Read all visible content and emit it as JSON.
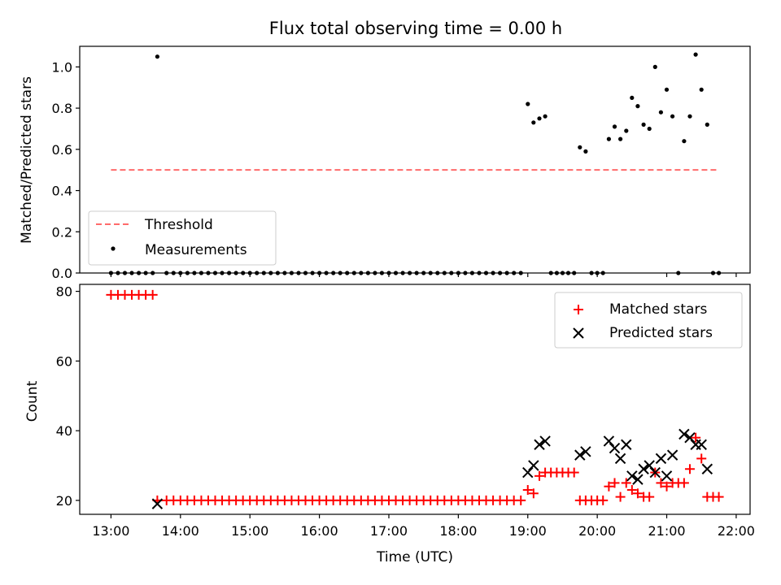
{
  "chart_data": [
    {
      "type": "scatter",
      "title": "Flux total observing time = 0.00 h",
      "xlabel": "",
      "ylabel": "Matched/Predicted stars",
      "xlim_hours": [
        12.55,
        22.2
      ],
      "ylim": [
        0,
        1.1
      ],
      "yticks": [
        "0.0",
        "0.2",
        "0.4",
        "0.6",
        "0.8",
        "1.0"
      ],
      "grid": false,
      "legend_placement": "lower-left",
      "colors": {
        "threshold": "#ff6b6b",
        "measurements": "#000000"
      },
      "threshold": {
        "name": "Threshold",
        "value": 0.5,
        "x_range": [
          13.0,
          21.75
        ],
        "style": "dashed"
      },
      "measurements": {
        "name": "Measurements",
        "x": [
          13.0,
          13.1,
          13.2,
          13.3,
          13.4,
          13.5,
          13.6,
          13.667,
          13.8,
          13.9,
          14.0,
          14.1,
          14.2,
          14.3,
          14.4,
          14.5,
          14.6,
          14.7,
          14.8,
          14.9,
          15.0,
          15.1,
          15.2,
          15.3,
          15.4,
          15.5,
          15.6,
          15.7,
          15.8,
          15.9,
          16.0,
          16.1,
          16.2,
          16.3,
          16.4,
          16.5,
          16.6,
          16.7,
          16.8,
          16.9,
          17.0,
          17.1,
          17.2,
          17.3,
          17.4,
          17.5,
          17.6,
          17.7,
          17.8,
          17.9,
          18.0,
          18.1,
          18.2,
          18.3,
          18.4,
          18.5,
          18.6,
          18.7,
          18.8,
          18.9,
          19.0,
          19.083,
          19.167,
          19.25,
          19.333,
          19.417,
          19.5,
          19.583,
          19.667,
          19.75,
          19.833,
          19.917,
          20.0,
          20.083,
          20.167,
          20.25,
          20.333,
          20.417,
          20.5,
          20.583,
          20.667,
          20.75,
          20.833,
          20.917,
          21.0,
          21.083,
          21.167,
          21.25,
          21.333,
          21.417,
          21.5,
          21.583,
          21.667,
          21.75
        ],
        "y": [
          0,
          0,
          0,
          0,
          0,
          0,
          0,
          1.05,
          0,
          0,
          0,
          0,
          0,
          0,
          0,
          0,
          0,
          0,
          0,
          0,
          0,
          0,
          0,
          0,
          0,
          0,
          0,
          0,
          0,
          0,
          0,
          0,
          0,
          0,
          0,
          0,
          0,
          0,
          0,
          0,
          0,
          0,
          0,
          0,
          0,
          0,
          0,
          0,
          0,
          0,
          0,
          0,
          0,
          0,
          0,
          0,
          0,
          0,
          0,
          0,
          0.82,
          0.73,
          0.75,
          0.76,
          0,
          0,
          0,
          0,
          0,
          0.61,
          0.59,
          0,
          0,
          0,
          0.65,
          0.71,
          0.65,
          0.69,
          0.85,
          0.81,
          0.72,
          0.7,
          1.0,
          0.78,
          0.89,
          0.76,
          0,
          0.64,
          0.76,
          1.06,
          0.89,
          0.72,
          0,
          0
        ]
      }
    },
    {
      "type": "scatter",
      "title": "",
      "xlabel": "Time (UTC)",
      "ylabel": "Count",
      "xlim_hours": [
        12.55,
        22.2
      ],
      "ylim": [
        16,
        82
      ],
      "yticks": [
        "20",
        "40",
        "60",
        "80"
      ],
      "xticks": [
        "13:00",
        "14:00",
        "15:00",
        "16:00",
        "17:00",
        "18:00",
        "19:00",
        "20:00",
        "21:00",
        "22:00"
      ],
      "xtick_hours": [
        13,
        14,
        15,
        16,
        17,
        18,
        19,
        20,
        21,
        22
      ],
      "grid": false,
      "legend_placement": "top-right",
      "colors": {
        "matched": "#ff0000",
        "predicted": "#000000"
      },
      "series": [
        {
          "name": "Matched stars",
          "marker": "+",
          "x": [
            13.0,
            13.1,
            13.2,
            13.3,
            13.4,
            13.5,
            13.6,
            13.667,
            13.8,
            13.9,
            14.0,
            14.1,
            14.2,
            14.3,
            14.4,
            14.5,
            14.6,
            14.7,
            14.8,
            14.9,
            15.0,
            15.1,
            15.2,
            15.3,
            15.4,
            15.5,
            15.6,
            15.7,
            15.8,
            15.9,
            16.0,
            16.1,
            16.2,
            16.3,
            16.4,
            16.5,
            16.6,
            16.7,
            16.8,
            16.9,
            17.0,
            17.1,
            17.2,
            17.3,
            17.4,
            17.5,
            17.6,
            17.7,
            17.8,
            17.9,
            18.0,
            18.1,
            18.2,
            18.3,
            18.4,
            18.5,
            18.6,
            18.7,
            18.8,
            18.9,
            19.0,
            19.083,
            19.167,
            19.25,
            19.333,
            19.417,
            19.5,
            19.583,
            19.667,
            19.75,
            19.833,
            19.917,
            20.0,
            20.083,
            20.167,
            20.25,
            20.333,
            20.417,
            20.5,
            20.583,
            20.667,
            20.75,
            20.833,
            20.917,
            21.0,
            21.083,
            21.167,
            21.25,
            21.333,
            21.417,
            21.5,
            21.583,
            21.667,
            21.75
          ],
          "y": [
            79,
            79,
            79,
            79,
            79,
            79,
            79,
            20,
            20,
            20,
            20,
            20,
            20,
            20,
            20,
            20,
            20,
            20,
            20,
            20,
            20,
            20,
            20,
            20,
            20,
            20,
            20,
            20,
            20,
            20,
            20,
            20,
            20,
            20,
            20,
            20,
            20,
            20,
            20,
            20,
            20,
            20,
            20,
            20,
            20,
            20,
            20,
            20,
            20,
            20,
            20,
            20,
            20,
            20,
            20,
            20,
            20,
            20,
            20,
            20,
            23,
            22,
            27,
            28,
            28,
            28,
            28,
            28,
            28,
            20,
            20,
            20,
            20,
            20,
            24,
            25,
            21,
            25,
            23,
            22,
            21,
            21,
            28,
            25,
            24,
            25,
            25,
            25,
            29,
            38,
            32,
            21,
            21,
            21
          ]
        },
        {
          "name": "Predicted stars",
          "marker": "x",
          "x": [
            13.667,
            19.0,
            19.083,
            19.167,
            19.25,
            19.75,
            19.833,
            20.167,
            20.25,
            20.333,
            20.417,
            20.5,
            20.583,
            20.667,
            20.75,
            20.833,
            20.917,
            21.0,
            21.083,
            21.25,
            21.333,
            21.417,
            21.5,
            21.583
          ],
          "y": [
            19,
            28,
            30,
            36,
            37,
            33,
            34,
            37,
            35,
            32,
            36,
            27,
            26,
            29,
            30,
            28,
            32,
            27,
            33,
            39,
            38,
            36,
            36,
            29
          ]
        }
      ]
    }
  ]
}
